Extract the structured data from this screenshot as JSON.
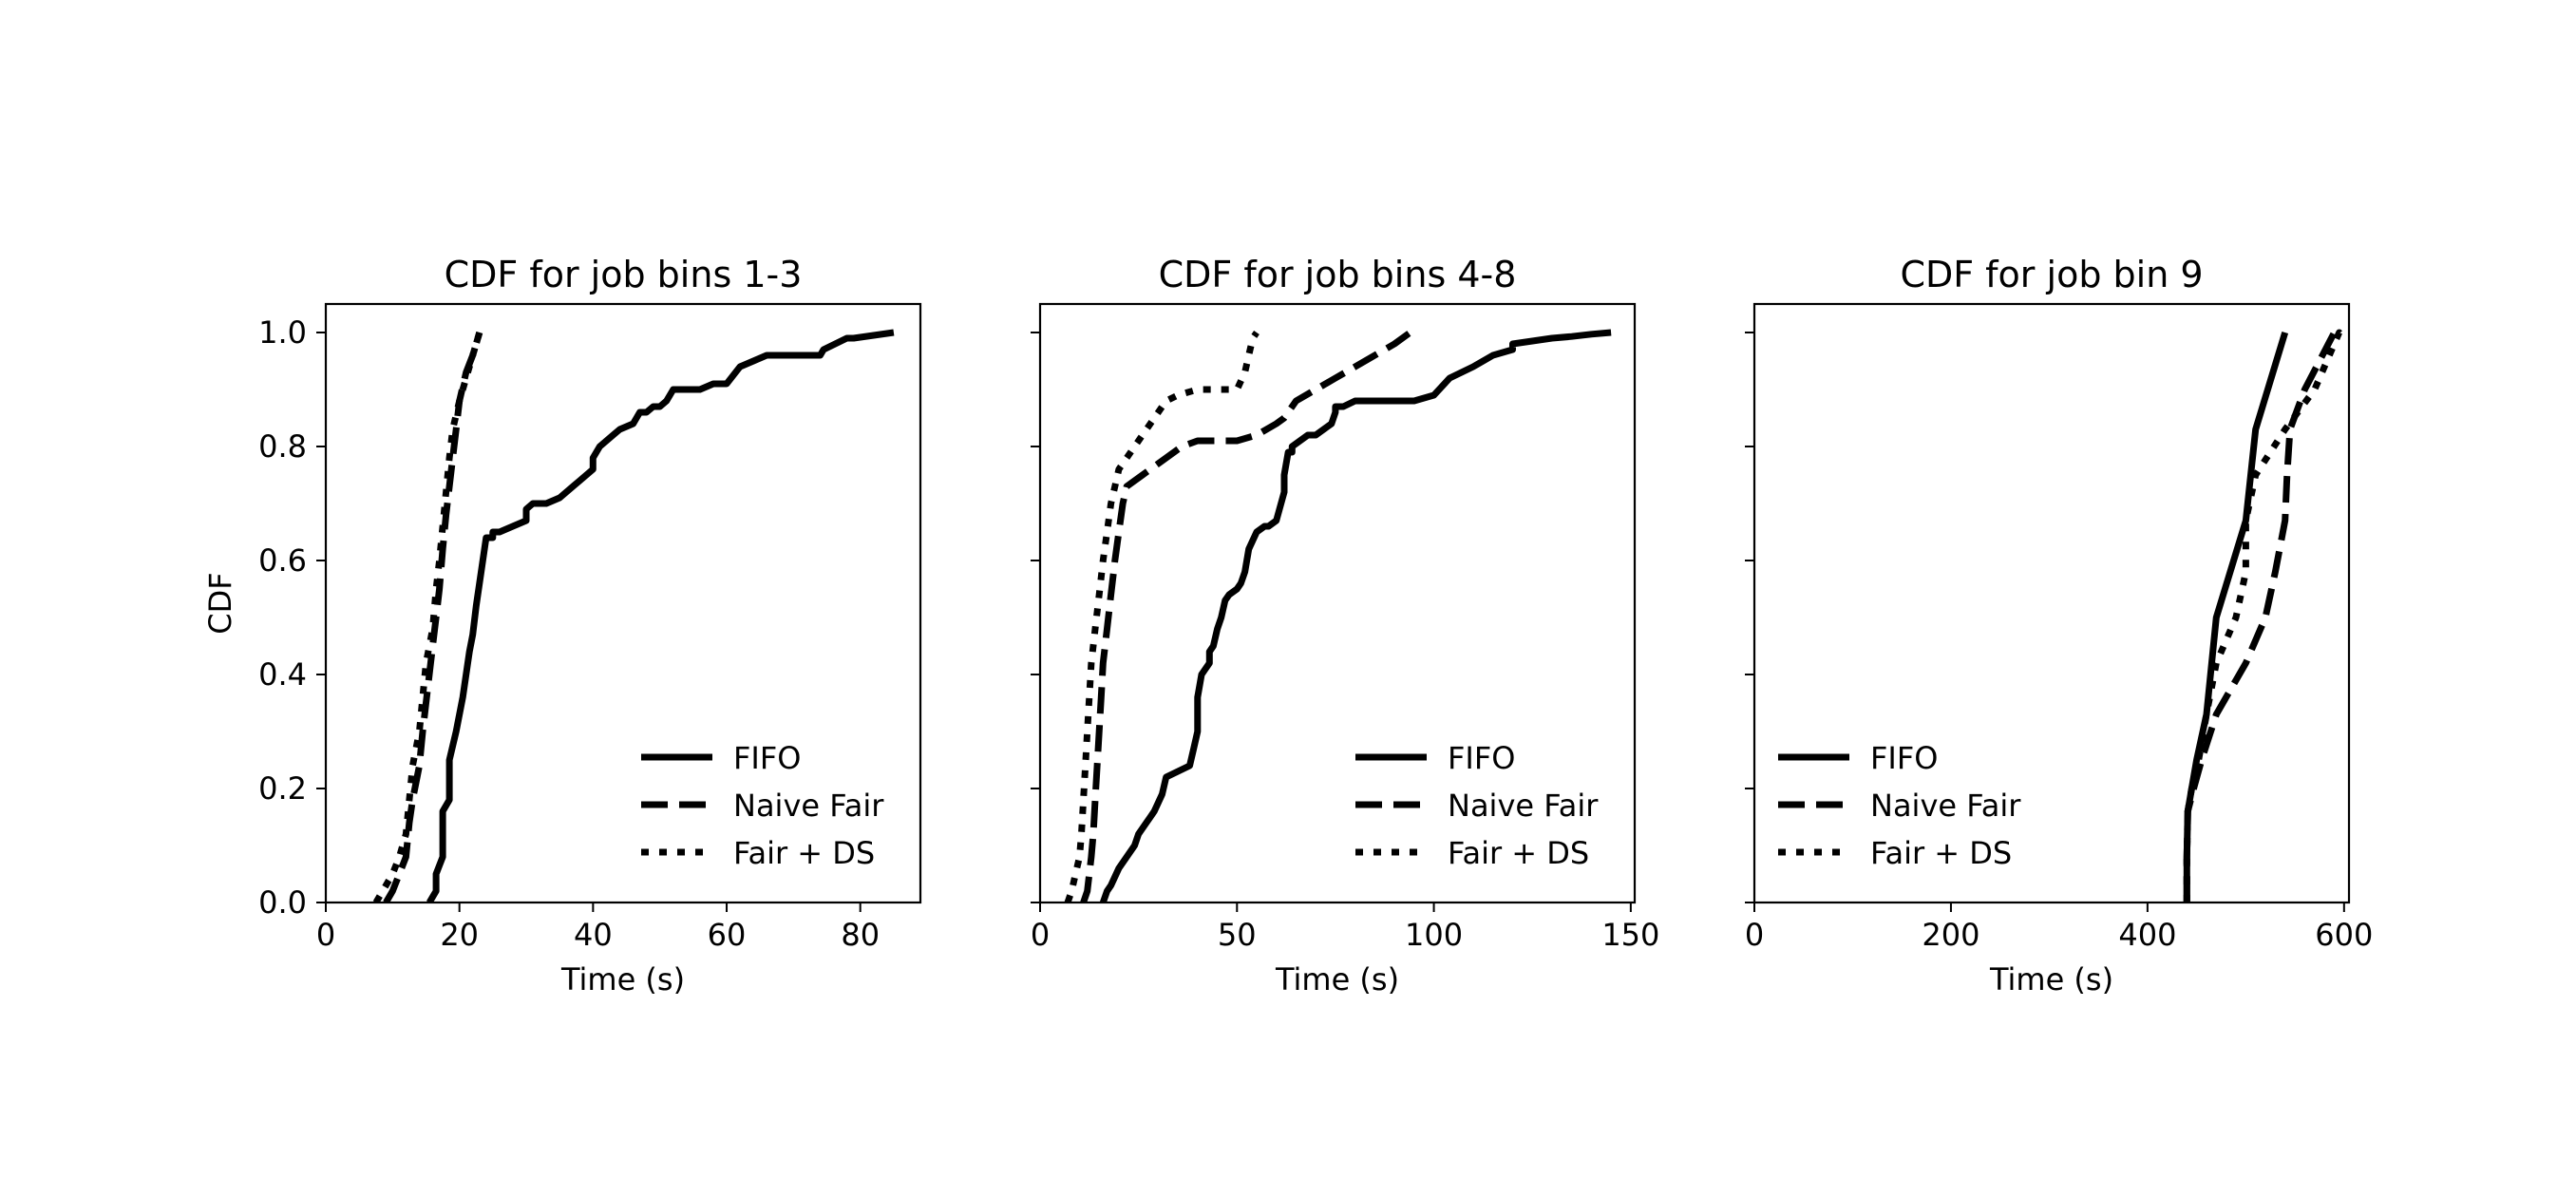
{
  "figure": {
    "ylabel_left": "CDF"
  },
  "chart_data": [
    {
      "type": "line",
      "title": "CDF for job bins 1-3",
      "xlabel": "Time (s)",
      "ylabel": "CDF",
      "xlim": [
        0,
        89
      ],
      "ylim": [
        0,
        1.05
      ],
      "xticks": [
        "0",
        "20",
        "40",
        "60",
        "80"
      ],
      "yticks": [
        "0.0",
        "0.2",
        "0.4",
        "0.6",
        "0.8",
        "1.0"
      ],
      "legend_position": "lower-right",
      "grid": false,
      "series": [
        {
          "name": "FIFO",
          "style": "solid",
          "x": [
            15.5,
            16.5,
            16.5,
            17.5,
            17.5,
            18.5,
            18.5,
            19.5,
            20,
            20.5,
            21,
            21.5,
            22,
            22.5,
            23,
            23.5,
            24,
            25,
            25,
            26,
            28,
            30,
            30,
            31,
            33,
            35,
            36,
            37,
            38,
            40,
            40,
            41,
            42,
            43,
            44,
            46,
            47,
            48,
            49,
            50,
            51,
            52,
            53,
            54,
            56,
            58,
            60,
            62,
            64,
            66,
            70,
            74,
            74.5,
            78,
            79,
            82,
            85
          ],
          "y": [
            0,
            0.02,
            0.05,
            0.08,
            0.16,
            0.18,
            0.25,
            0.3,
            0.33,
            0.36,
            0.4,
            0.44,
            0.47,
            0.52,
            0.56,
            0.6,
            0.64,
            0.64,
            0.65,
            0.65,
            0.66,
            0.67,
            0.69,
            0.7,
            0.7,
            0.71,
            0.72,
            0.73,
            0.74,
            0.76,
            0.78,
            0.8,
            0.81,
            0.82,
            0.83,
            0.84,
            0.86,
            0.86,
            0.87,
            0.87,
            0.88,
            0.9,
            0.9,
            0.9,
            0.9,
            0.91,
            0.91,
            0.94,
            0.95,
            0.96,
            0.96,
            0.96,
            0.97,
            0.99,
            0.99,
            0.995,
            1.0
          ]
        },
        {
          "name": "Naive Fair",
          "style": "dashed",
          "x": [
            9,
            10,
            11,
            12,
            12.5,
            13,
            14,
            14.5,
            15,
            15.5,
            16,
            16.5,
            17,
            17.5,
            18,
            18.5,
            19,
            19.5,
            20,
            21,
            22,
            22.5,
            23
          ],
          "y": [
            0,
            0.02,
            0.05,
            0.08,
            0.14,
            0.18,
            0.24,
            0.3,
            0.35,
            0.4,
            0.45,
            0.5,
            0.55,
            0.62,
            0.68,
            0.73,
            0.78,
            0.83,
            0.88,
            0.93,
            0.96,
            0.98,
            1.0
          ]
        },
        {
          "name": "Fair + DS",
          "style": "dotted",
          "x": [
            7.5,
            8.5,
            10,
            11,
            12,
            12.5,
            13,
            14,
            14.5,
            15,
            16,
            16.5,
            17,
            17.5,
            18,
            18.5,
            19,
            20,
            21,
            22,
            22.5,
            23
          ],
          "y": [
            0,
            0.02,
            0.05,
            0.08,
            0.12,
            0.18,
            0.24,
            0.3,
            0.36,
            0.42,
            0.48,
            0.55,
            0.6,
            0.66,
            0.72,
            0.78,
            0.83,
            0.88,
            0.92,
            0.96,
            0.98,
            1.0
          ]
        }
      ]
    },
    {
      "type": "line",
      "title": "CDF for job bins 4-8",
      "xlabel": "Time (s)",
      "ylabel": "",
      "xlim": [
        0,
        151
      ],
      "ylim": [
        0,
        1.05
      ],
      "xticks": [
        "0",
        "50",
        "100",
        "150"
      ],
      "yticks": [],
      "legend_position": "lower-right",
      "grid": false,
      "series": [
        {
          "name": "FIFO",
          "style": "solid",
          "x": [
            16,
            17,
            18,
            20,
            22,
            24,
            25,
            27,
            28,
            29,
            31,
            32,
            35,
            38,
            39,
            40,
            40,
            41,
            43,
            43,
            44,
            45,
            46,
            47,
            48,
            50,
            51,
            52,
            53,
            55,
            57,
            58,
            60,
            62,
            62,
            63,
            64,
            64,
            66,
            68,
            70,
            72,
            74,
            75,
            75,
            77,
            80,
            85,
            90,
            95,
            100,
            104,
            110,
            115,
            120,
            120,
            125,
            130,
            135,
            140,
            145
          ],
          "y": [
            0,
            0.02,
            0.03,
            0.06,
            0.08,
            0.1,
            0.12,
            0.14,
            0.15,
            0.16,
            0.19,
            0.22,
            0.23,
            0.24,
            0.27,
            0.3,
            0.36,
            0.4,
            0.42,
            0.44,
            0.45,
            0.48,
            0.5,
            0.53,
            0.54,
            0.55,
            0.56,
            0.58,
            0.62,
            0.65,
            0.66,
            0.66,
            0.67,
            0.72,
            0.75,
            0.79,
            0.79,
            0.8,
            0.81,
            0.82,
            0.82,
            0.83,
            0.84,
            0.86,
            0.87,
            0.87,
            0.88,
            0.88,
            0.88,
            0.88,
            0.89,
            0.92,
            0.94,
            0.96,
            0.97,
            0.98,
            0.985,
            0.99,
            0.993,
            0.997,
            1.0
          ]
        },
        {
          "name": "Naive Fair",
          "style": "dashed",
          "x": [
            11,
            12,
            12.5,
            13,
            13.5,
            14,
            14.5,
            15,
            15.5,
            16,
            17,
            18,
            19,
            20,
            21,
            22,
            24,
            26,
            28,
            30,
            32,
            34,
            36,
            40,
            45,
            50,
            55,
            60,
            62,
            65,
            70,
            75,
            80,
            85,
            90,
            94
          ],
          "y": [
            0,
            0.02,
            0.05,
            0.08,
            0.12,
            0.18,
            0.24,
            0.3,
            0.36,
            0.42,
            0.48,
            0.54,
            0.6,
            0.65,
            0.7,
            0.73,
            0.74,
            0.75,
            0.76,
            0.77,
            0.78,
            0.79,
            0.8,
            0.81,
            0.81,
            0.81,
            0.82,
            0.84,
            0.85,
            0.88,
            0.9,
            0.92,
            0.94,
            0.96,
            0.98,
            1.0
          ]
        },
        {
          "name": "Fair + DS",
          "style": "dotted",
          "x": [
            7,
            8,
            9,
            10,
            10.5,
            11,
            11.5,
            12,
            12.5,
            13,
            14,
            15,
            16,
            17,
            18,
            19,
            20,
            21,
            22,
            24,
            26,
            28,
            30,
            32,
            35,
            40,
            45,
            50,
            52,
            53,
            54,
            55
          ],
          "y": [
            0,
            0.02,
            0.05,
            0.08,
            0.12,
            0.18,
            0.24,
            0.3,
            0.36,
            0.42,
            0.48,
            0.54,
            0.6,
            0.65,
            0.7,
            0.73,
            0.76,
            0.77,
            0.78,
            0.8,
            0.82,
            0.84,
            0.86,
            0.88,
            0.89,
            0.9,
            0.9,
            0.9,
            0.93,
            0.96,
            0.99,
            1.0
          ]
        }
      ]
    },
    {
      "type": "line",
      "title": "CDF for job bin 9",
      "xlabel": "Time (s)",
      "ylabel": "",
      "xlim": [
        0,
        605
      ],
      "ylim": [
        0,
        1.05
      ],
      "xticks": [
        "0",
        "200",
        "400",
        "600"
      ],
      "yticks": [],
      "legend_position": "lower-left",
      "grid": false,
      "series": [
        {
          "name": "FIFO",
          "style": "solid",
          "x": [
            440,
            440,
            441,
            445,
            450,
            460,
            470,
            500,
            510,
            540
          ],
          "y": [
            0,
            0.08,
            0.16,
            0.2,
            0.25,
            0.33,
            0.5,
            0.67,
            0.83,
            1.0
          ]
        },
        {
          "name": "Naive Fair",
          "style": "dashed",
          "x": [
            440,
            440,
            441,
            447,
            455,
            470,
            500,
            520,
            530,
            540,
            542,
            545,
            560,
            590
          ],
          "y": [
            0,
            0.08,
            0.16,
            0.2,
            0.25,
            0.33,
            0.42,
            0.5,
            0.58,
            0.67,
            0.75,
            0.83,
            0.9,
            1.0
          ]
        },
        {
          "name": "Fair + DS",
          "style": "dotted",
          "x": [
            440,
            440,
            441,
            445,
            452,
            460,
            470,
            490,
            500,
            500,
            510,
            540,
            570,
            595,
            600
          ],
          "y": [
            0,
            0.08,
            0.16,
            0.2,
            0.25,
            0.33,
            0.42,
            0.5,
            0.58,
            0.67,
            0.75,
            0.83,
            0.9,
            1.0,
            0.99
          ]
        }
      ]
    }
  ]
}
